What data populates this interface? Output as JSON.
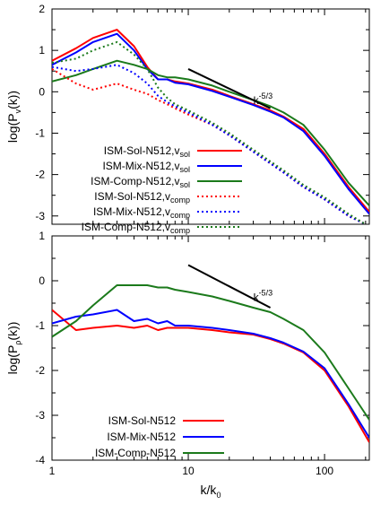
{
  "chart_data": [
    {
      "type": "line",
      "xscale": "log",
      "xlim": [
        1,
        213
      ],
      "ylim": [
        -3.2,
        2
      ],
      "yticks": [
        "2",
        "1",
        "0",
        "-1",
        "-2",
        "-3"
      ],
      "ytick_values": [
        2,
        1,
        0,
        -1,
        -2,
        -3
      ],
      "ylabel": {
        "pre": "log(P",
        "sub": "v",
        "post": "(k))"
      },
      "annotation": {
        "base": "k",
        "sup": "-5/3",
        "line": {
          "x": [
            10,
            40
          ],
          "y": [
            0.55,
            -0.4
          ]
        },
        "label_at": [
          30,
          -0.3
        ]
      },
      "series": [
        {
          "name": "ISM-Sol-N512,",
          "name_v": "v",
          "name_sub": "sol",
          "color": "#ff0000",
          "dash": false,
          "x": [
            1,
            1.5,
            2,
            3,
            4,
            5,
            6,
            7,
            8,
            10,
            15,
            20,
            30,
            40,
            50,
            70,
            100,
            150,
            213
          ],
          "y": [
            0.75,
            1.05,
            1.3,
            1.5,
            1.1,
            0.6,
            0.3,
            0.3,
            0.25,
            0.2,
            0.05,
            -0.1,
            -0.3,
            -0.45,
            -0.6,
            -0.9,
            -1.5,
            -2.3,
            -2.9
          ]
        },
        {
          "name": "ISM-Mix-N512,",
          "name_v": "v",
          "name_sub": "sol",
          "color": "#0000ff",
          "dash": false,
          "x": [
            1,
            1.5,
            2,
            3,
            4,
            5,
            6,
            7,
            8,
            10,
            15,
            20,
            30,
            40,
            50,
            70,
            100,
            150,
            213
          ],
          "y": [
            0.65,
            0.95,
            1.2,
            1.4,
            1.0,
            0.55,
            0.3,
            0.3,
            0.22,
            0.18,
            0.02,
            -0.12,
            -0.32,
            -0.48,
            -0.62,
            -0.95,
            -1.55,
            -2.35,
            -2.95
          ]
        },
        {
          "name": "ISM-Comp-N512,",
          "name_v": "v",
          "name_sub": "sol",
          "color": "#1b7a1b",
          "dash": false,
          "x": [
            1,
            1.5,
            2,
            3,
            4,
            5,
            6,
            7,
            8,
            10,
            15,
            20,
            30,
            40,
            50,
            70,
            100,
            150,
            213
          ],
          "y": [
            0.25,
            0.4,
            0.55,
            0.75,
            0.65,
            0.55,
            0.4,
            0.35,
            0.35,
            0.3,
            0.15,
            0.0,
            -0.2,
            -0.35,
            -0.5,
            -0.8,
            -1.4,
            -2.2,
            -2.75
          ]
        },
        {
          "name": "ISM-Sol-N512,",
          "name_v": "v",
          "name_sub": "comp",
          "color": "#ff0000",
          "dash": true,
          "x": [
            1,
            1.5,
            2,
            3,
            4,
            5,
            6,
            7,
            8,
            10,
            15,
            20,
            30,
            50,
            70,
            100,
            150,
            200
          ],
          "y": [
            0.55,
            0.2,
            0.05,
            0.2,
            0.05,
            -0.05,
            -0.2,
            -0.3,
            -0.4,
            -0.55,
            -0.8,
            -1.05,
            -1.45,
            -1.95,
            -2.3,
            -2.6,
            -3.0,
            -3.2
          ]
        },
        {
          "name": "ISM-Mix-N512,",
          "name_v": "v",
          "name_sub": "comp",
          "color": "#0000ff",
          "dash": true,
          "x": [
            1,
            1.5,
            2,
            3,
            4,
            5,
            6,
            7,
            8,
            10,
            15,
            20,
            30,
            50,
            70,
            100,
            150,
            200
          ],
          "y": [
            0.6,
            0.5,
            0.55,
            0.65,
            0.45,
            0.2,
            -0.1,
            -0.25,
            -0.35,
            -0.5,
            -0.8,
            -1.05,
            -1.45,
            -1.95,
            -2.3,
            -2.6,
            -3.0,
            -3.2
          ]
        },
        {
          "name": "ISM-Comp-N512,",
          "name_v": "v",
          "name_sub": "comp",
          "color": "#1b7a1b",
          "dash": true,
          "x": [
            1,
            1.5,
            2,
            3,
            4,
            5,
            6,
            7,
            8,
            10,
            15,
            20,
            30,
            50,
            70,
            100,
            150,
            200
          ],
          "y": [
            0.7,
            0.8,
            1.0,
            1.2,
            0.9,
            0.55,
            0.1,
            -0.15,
            -0.3,
            -0.45,
            -0.75,
            -1.0,
            -1.4,
            -1.9,
            -2.25,
            -2.55,
            -2.95,
            -3.2
          ]
        }
      ]
    },
    {
      "type": "line",
      "xscale": "log",
      "xlim": [
        1,
        213
      ],
      "ylim": [
        -4,
        1
      ],
      "xticks": [
        "1",
        "10",
        "100"
      ],
      "xtick_values": [
        1,
        10,
        100
      ],
      "xlabel": {
        "pre": "k/k",
        "sub": "0"
      },
      "yticks": [
        "1",
        "0",
        "-1",
        "-2",
        "-3",
        "-4"
      ],
      "ytick_values": [
        1,
        0,
        -1,
        -2,
        -3,
        -4
      ],
      "ylabel": {
        "pre": "log(P",
        "sub": "ρ",
        "post": "(k))"
      },
      "annotation": {
        "base": "k",
        "sup": "-5/3",
        "line": {
          "x": [
            10,
            40
          ],
          "y": [
            0.35,
            -0.6
          ]
        },
        "label_at": [
          30,
          -0.45
        ]
      },
      "series": [
        {
          "name": "ISM-Sol-N512",
          "color": "#ff0000",
          "dash": false,
          "x": [
            1,
            1.5,
            2,
            3,
            4,
            5,
            6,
            7,
            8,
            10,
            15,
            20,
            30,
            40,
            50,
            70,
            100,
            150,
            213
          ],
          "y": [
            -0.65,
            -1.1,
            -1.05,
            -1.0,
            -1.05,
            -1.0,
            -1.1,
            -1.05,
            -1.05,
            -1.05,
            -1.1,
            -1.15,
            -1.2,
            -1.3,
            -1.4,
            -1.6,
            -2.0,
            -2.8,
            -3.6
          ]
        },
        {
          "name": "ISM-Mix-N512",
          "color": "#0000ff",
          "dash": false,
          "x": [
            1,
            1.5,
            2,
            3,
            4,
            5,
            6,
            7,
            8,
            10,
            15,
            20,
            30,
            40,
            50,
            70,
            100,
            150,
            213
          ],
          "y": [
            -0.95,
            -0.8,
            -0.75,
            -0.65,
            -0.9,
            -0.85,
            -0.95,
            -0.9,
            -1.0,
            -1.0,
            -1.05,
            -1.1,
            -1.18,
            -1.28,
            -1.38,
            -1.58,
            -1.95,
            -2.75,
            -3.5
          ]
        },
        {
          "name": "ISM-Comp-N512",
          "color": "#1b7a1b",
          "dash": false,
          "x": [
            1,
            1.5,
            2,
            3,
            4,
            5,
            6,
            7,
            8,
            10,
            15,
            20,
            30,
            40,
            50,
            70,
            100,
            150,
            213
          ],
          "y": [
            -1.25,
            -0.9,
            -0.55,
            -0.1,
            -0.1,
            -0.1,
            -0.15,
            -0.15,
            -0.2,
            -0.25,
            -0.35,
            -0.45,
            -0.6,
            -0.7,
            -0.85,
            -1.1,
            -1.6,
            -2.4,
            -3.1
          ]
        }
      ]
    }
  ]
}
